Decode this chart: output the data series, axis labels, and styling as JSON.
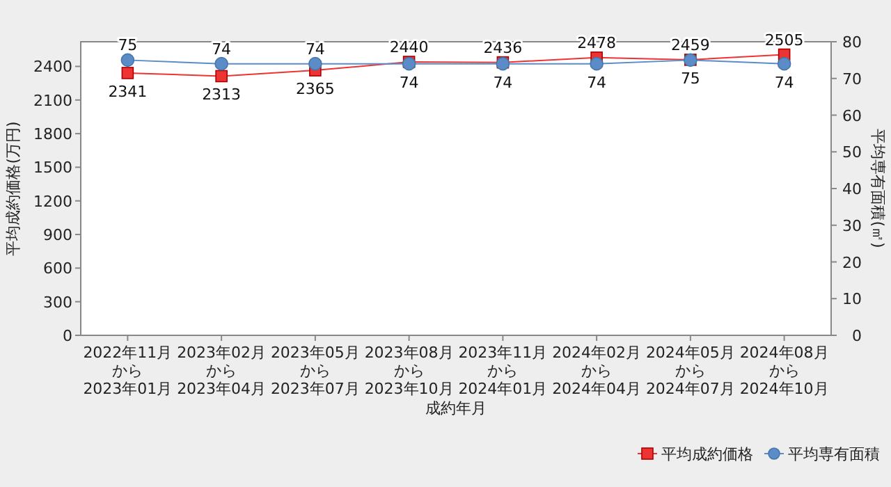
{
  "chart_data": {
    "type": "line",
    "xlabel": "成約年月",
    "ylabel": "平均成約価格(万円)",
    "y2label": "平均専有面積(㎡)",
    "categories": [
      "2022年11月から2023年01月",
      "2023年02月から2023年04月",
      "2023年05月から2023年07月",
      "2023年08月から2023年10月",
      "2023年11月から2024年01月",
      "2024年02月から2024年04月",
      "2024年05月から2024年07月",
      "2024年08月から2024年10月"
    ],
    "series": [
      {
        "name": "平均成約価格",
        "color": "#ee3333",
        "marker": "square",
        "values": [
          2341,
          2313,
          2365,
          2440,
          2436,
          2478,
          2459,
          2505
        ]
      },
      {
        "name": "平均専有面積",
        "color": "#5b8cc8",
        "marker": "circle",
        "axis": "y2",
        "values": [
          75,
          74,
          74,
          74,
          74,
          74,
          75,
          74
        ]
      }
    ],
    "ylim": [
      0,
      2620
    ],
    "yticks": [
      0,
      300,
      600,
      900,
      1200,
      1500,
      1800,
      2100,
      2400
    ],
    "y2lim": [
      0,
      80
    ],
    "y2ticks": [
      0,
      10,
      20,
      30,
      40,
      50,
      60,
      70,
      80
    ],
    "data_labels": true,
    "grid": false,
    "legend": "bottom right"
  }
}
